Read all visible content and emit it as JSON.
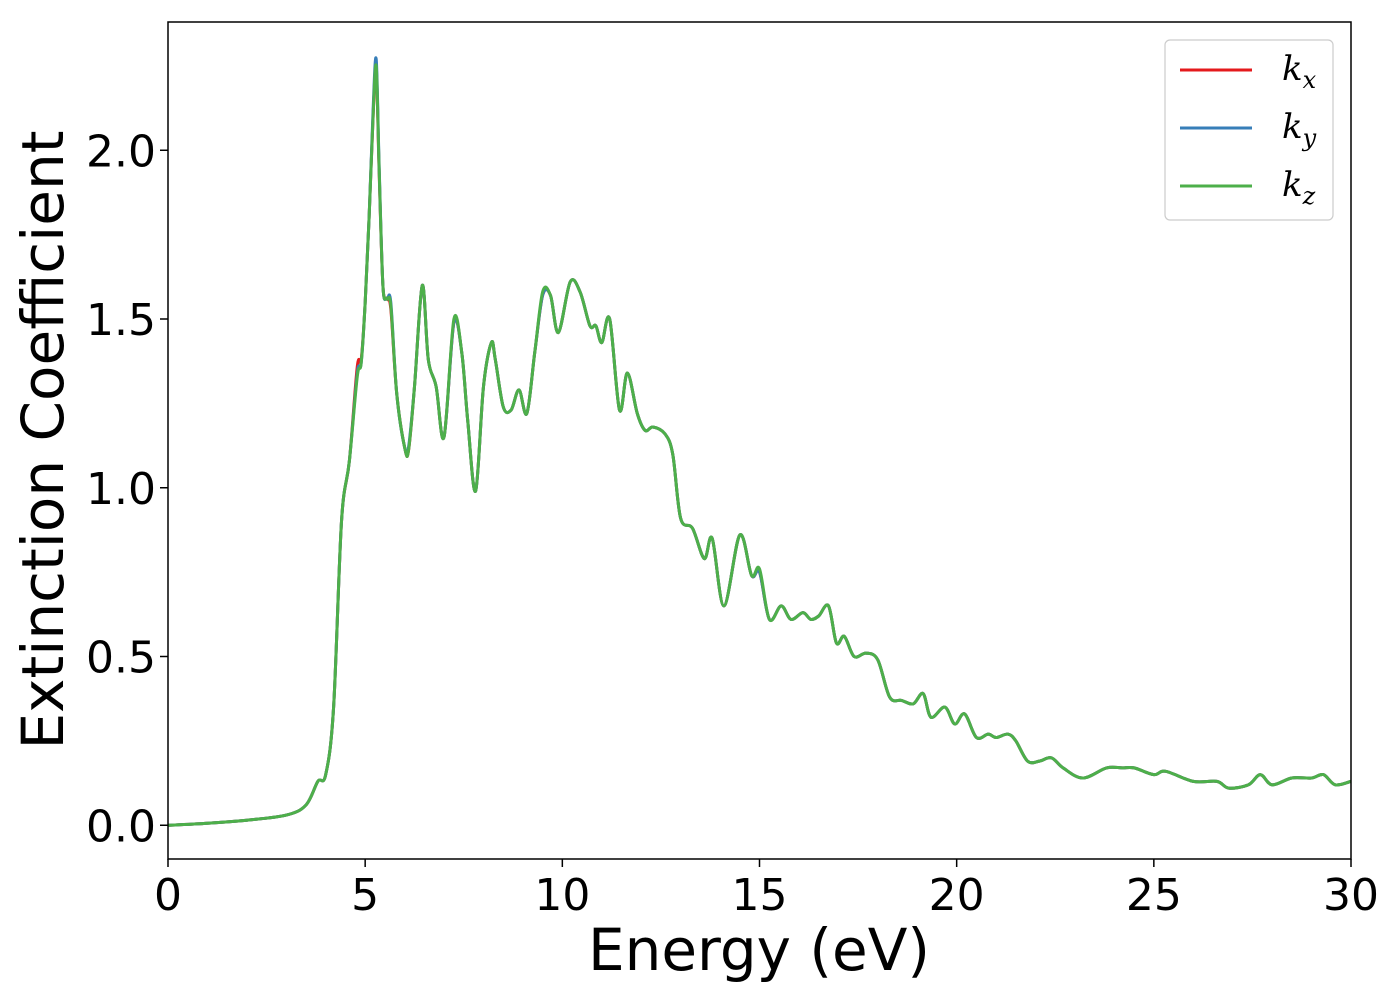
{
  "chart_data": {
    "type": "line",
    "xlabel": "Energy (eV)",
    "ylabel": "Extinction Coefficient",
    "xlim": [
      0,
      30
    ],
    "ylim": [
      -0.1,
      2.38
    ],
    "xticks": [
      0,
      5,
      10,
      15,
      20,
      25,
      30
    ],
    "yticks": [
      0.0,
      0.5,
      1.0,
      1.5,
      2.0
    ],
    "grid": false,
    "legend_position": "top-right",
    "series": [
      {
        "name": "k",
        "subscript": "x",
        "color": "#e41a1c",
        "x": [
          0,
          1,
          2,
          3,
          3.5,
          3.8,
          4.0,
          4.2,
          4.4,
          4.6,
          4.8,
          4.9,
          5.0,
          5.1,
          5.2,
          5.28,
          5.35,
          5.45,
          5.55,
          5.65,
          5.8,
          6.0,
          6.1,
          6.25,
          6.45,
          6.6,
          6.8,
          7.0,
          7.25,
          7.45,
          7.6,
          7.8,
          8.0,
          8.2,
          8.3,
          8.5,
          8.7,
          8.9,
          9.1,
          9.3,
          9.5,
          9.7,
          9.9,
          10.2,
          10.45,
          10.7,
          10.85,
          11.0,
          11.2,
          11.45,
          11.65,
          11.9,
          12.1,
          12.3,
          12.6,
          12.8,
          13.0,
          13.3,
          13.6,
          13.8,
          14.1,
          14.5,
          14.8,
          15.0,
          15.25,
          15.55,
          15.8,
          16.1,
          16.3,
          16.5,
          16.75,
          16.95,
          17.15,
          17.4,
          17.7,
          18.0,
          18.3,
          18.6,
          18.9,
          19.15,
          19.35,
          19.7,
          19.95,
          20.2,
          20.5,
          20.8,
          21.0,
          21.3,
          21.5,
          21.8,
          22.1,
          22.4,
          22.7,
          23.2,
          23.8,
          24.2,
          24.5,
          25.0,
          25.3,
          26.0,
          26.6,
          26.9,
          27.4,
          27.7,
          28.0,
          28.5,
          29.0,
          29.3,
          29.6,
          30.0
        ],
        "values": [
          0.0,
          0.006,
          0.015,
          0.03,
          0.06,
          0.13,
          0.15,
          0.35,
          0.9,
          1.08,
          1.36,
          1.38,
          1.55,
          1.8,
          2.1,
          2.24,
          1.95,
          1.6,
          1.56,
          1.53,
          1.28,
          1.12,
          1.11,
          1.3,
          1.6,
          1.38,
          1.3,
          1.15,
          1.49,
          1.4,
          1.2,
          0.99,
          1.3,
          1.43,
          1.38,
          1.24,
          1.23,
          1.29,
          1.22,
          1.4,
          1.57,
          1.57,
          1.46,
          1.61,
          1.58,
          1.48,
          1.48,
          1.43,
          1.5,
          1.23,
          1.34,
          1.22,
          1.17,
          1.18,
          1.16,
          1.1,
          0.91,
          0.88,
          0.79,
          0.85,
          0.65,
          0.86,
          0.74,
          0.75,
          0.61,
          0.65,
          0.61,
          0.63,
          0.61,
          0.62,
          0.65,
          0.54,
          0.56,
          0.5,
          0.51,
          0.49,
          0.38,
          0.37,
          0.36,
          0.39,
          0.32,
          0.35,
          0.3,
          0.33,
          0.26,
          0.27,
          0.26,
          0.27,
          0.25,
          0.19,
          0.19,
          0.2,
          0.17,
          0.14,
          0.17,
          0.17,
          0.17,
          0.15,
          0.16,
          0.13,
          0.13,
          0.11,
          0.12,
          0.15,
          0.12,
          0.14,
          0.14,
          0.15,
          0.12,
          0.13
        ]
      },
      {
        "name": "k",
        "subscript": "y",
        "color": "#377eb8",
        "x": [
          0,
          1,
          2,
          3,
          3.5,
          3.8,
          4.0,
          4.2,
          4.4,
          4.6,
          4.8,
          4.9,
          5.0,
          5.1,
          5.2,
          5.28,
          5.35,
          5.45,
          5.55,
          5.65,
          5.8,
          6.0,
          6.1,
          6.25,
          6.45,
          6.6,
          6.8,
          7.0,
          7.25,
          7.45,
          7.6,
          7.8,
          8.0,
          8.2,
          8.3,
          8.5,
          8.7,
          8.9,
          9.1,
          9.3,
          9.5,
          9.7,
          9.9,
          10.2,
          10.45,
          10.7,
          10.85,
          11.0,
          11.2,
          11.45,
          11.65,
          11.9,
          12.1,
          12.3,
          12.6,
          12.8,
          13.0,
          13.3,
          13.6,
          13.8,
          14.1,
          14.5,
          14.8,
          15.0,
          15.25,
          15.55,
          15.8,
          16.1,
          16.3,
          16.5,
          16.75,
          16.95,
          17.15,
          17.4,
          17.7,
          18.0,
          18.3,
          18.6,
          18.9,
          19.15,
          19.35,
          19.7,
          19.95,
          20.2,
          20.5,
          20.8,
          21.0,
          21.3,
          21.5,
          21.8,
          22.1,
          22.4,
          22.7,
          23.2,
          23.8,
          24.2,
          24.5,
          25.0,
          25.3,
          26.0,
          26.6,
          26.9,
          27.4,
          27.7,
          28.0,
          28.5,
          29.0,
          29.3,
          29.6,
          30.0
        ],
        "values": [
          0.0,
          0.006,
          0.015,
          0.03,
          0.06,
          0.13,
          0.15,
          0.35,
          0.9,
          1.08,
          1.34,
          1.37,
          1.55,
          1.8,
          2.12,
          2.27,
          1.97,
          1.6,
          1.56,
          1.55,
          1.28,
          1.12,
          1.12,
          1.3,
          1.6,
          1.38,
          1.3,
          1.15,
          1.49,
          1.4,
          1.2,
          0.99,
          1.3,
          1.43,
          1.38,
          1.24,
          1.23,
          1.29,
          1.22,
          1.4,
          1.57,
          1.57,
          1.46,
          1.61,
          1.58,
          1.48,
          1.48,
          1.43,
          1.5,
          1.23,
          1.34,
          1.22,
          1.17,
          1.18,
          1.16,
          1.1,
          0.91,
          0.88,
          0.79,
          0.85,
          0.65,
          0.86,
          0.74,
          0.75,
          0.61,
          0.65,
          0.61,
          0.63,
          0.61,
          0.62,
          0.65,
          0.54,
          0.56,
          0.5,
          0.51,
          0.49,
          0.38,
          0.37,
          0.36,
          0.39,
          0.32,
          0.35,
          0.3,
          0.33,
          0.26,
          0.27,
          0.26,
          0.27,
          0.25,
          0.19,
          0.19,
          0.2,
          0.17,
          0.14,
          0.17,
          0.17,
          0.17,
          0.15,
          0.16,
          0.13,
          0.13,
          0.11,
          0.12,
          0.15,
          0.12,
          0.14,
          0.14,
          0.15,
          0.12,
          0.13
        ]
      },
      {
        "name": "k",
        "subscript": "z",
        "color": "#4daf4a",
        "x": [
          0,
          1,
          2,
          3,
          3.5,
          3.8,
          4.0,
          4.2,
          4.4,
          4.6,
          4.8,
          4.9,
          5.0,
          5.1,
          5.2,
          5.28,
          5.35,
          5.45,
          5.55,
          5.65,
          5.8,
          6.0,
          6.1,
          6.25,
          6.45,
          6.6,
          6.8,
          7.0,
          7.25,
          7.45,
          7.6,
          7.8,
          8.0,
          8.2,
          8.3,
          8.5,
          8.7,
          8.9,
          9.1,
          9.3,
          9.5,
          9.7,
          9.9,
          10.2,
          10.45,
          10.7,
          10.85,
          11.0,
          11.2,
          11.45,
          11.65,
          11.9,
          12.1,
          12.3,
          12.6,
          12.8,
          13.0,
          13.3,
          13.6,
          13.8,
          14.1,
          14.5,
          14.8,
          15.0,
          15.25,
          15.55,
          15.8,
          16.1,
          16.3,
          16.5,
          16.75,
          16.95,
          17.15,
          17.4,
          17.7,
          18.0,
          18.3,
          18.6,
          18.9,
          19.15,
          19.35,
          19.7,
          19.95,
          20.2,
          20.5,
          20.8,
          21.0,
          21.3,
          21.5,
          21.8,
          22.1,
          22.4,
          22.7,
          23.2,
          23.8,
          24.2,
          24.5,
          25.0,
          25.3,
          26.0,
          26.6,
          26.9,
          27.4,
          27.7,
          28.0,
          28.5,
          29.0,
          29.3,
          29.6,
          30.0
        ],
        "values": [
          0.0,
          0.006,
          0.015,
          0.03,
          0.06,
          0.13,
          0.15,
          0.35,
          0.9,
          1.08,
          1.33,
          1.37,
          1.55,
          1.8,
          2.1,
          2.25,
          1.96,
          1.6,
          1.56,
          1.54,
          1.28,
          1.12,
          1.11,
          1.3,
          1.6,
          1.38,
          1.3,
          1.15,
          1.5,
          1.4,
          1.2,
          0.99,
          1.3,
          1.43,
          1.38,
          1.24,
          1.23,
          1.29,
          1.22,
          1.4,
          1.58,
          1.57,
          1.46,
          1.61,
          1.58,
          1.48,
          1.48,
          1.43,
          1.5,
          1.23,
          1.34,
          1.22,
          1.17,
          1.18,
          1.16,
          1.1,
          0.91,
          0.88,
          0.79,
          0.85,
          0.65,
          0.86,
          0.74,
          0.76,
          0.61,
          0.65,
          0.61,
          0.63,
          0.61,
          0.62,
          0.65,
          0.54,
          0.56,
          0.5,
          0.51,
          0.49,
          0.38,
          0.37,
          0.36,
          0.39,
          0.32,
          0.35,
          0.3,
          0.33,
          0.26,
          0.27,
          0.26,
          0.27,
          0.25,
          0.19,
          0.19,
          0.2,
          0.17,
          0.14,
          0.17,
          0.17,
          0.17,
          0.15,
          0.16,
          0.13,
          0.13,
          0.11,
          0.12,
          0.15,
          0.12,
          0.14,
          0.14,
          0.15,
          0.12,
          0.13
        ]
      }
    ]
  }
}
